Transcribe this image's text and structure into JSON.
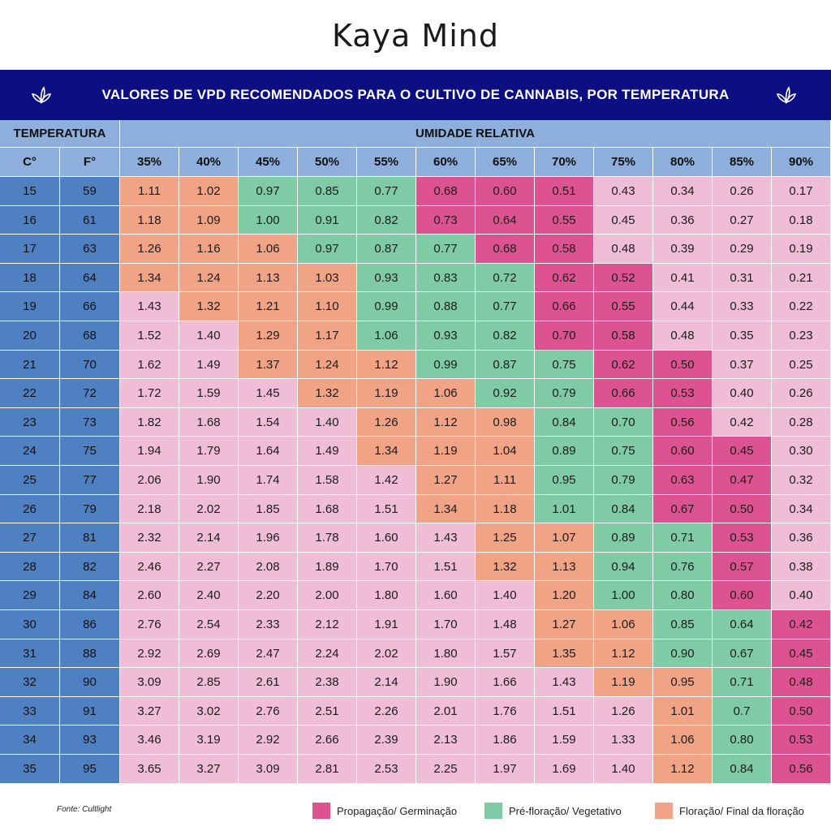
{
  "brand": "Kaya Mind",
  "title": "VALORES DE VPD RECOMENDADOS PARA O CULTIVO DE CANNABIS, POR TEMPERATURA",
  "source": "Fonte: Cultlight",
  "colors": {
    "propagacao": "#dd5291",
    "prefloracao": "#7ecba5",
    "floracao": "#f0a385",
    "other": "#efbdd5",
    "header": "#8eaedc",
    "temp": "#4f81c2",
    "banner": "#0c0f82"
  },
  "legend": [
    {
      "key": "propagacao",
      "label": "Propagação/ Germinação"
    },
    {
      "key": "prefloracao",
      "label": "Pré-floração/ Vegetativo"
    },
    {
      "key": "floracao",
      "label": "Floração/ Final da floração"
    }
  ],
  "chart_data": {
    "type": "table",
    "title": "VALORES DE VPD RECOMENDADOS PARA O CULTIVO DE CANNABIS, POR TEMPERATURA",
    "temperature_header": "TEMPERATURA",
    "humidity_header": "UMIDADE RELATIVA",
    "celsius_label": "C°",
    "fahrenheit_label": "F°",
    "humidity_levels": [
      "35%",
      "40%",
      "45%",
      "50%",
      "55%",
      "60%",
      "65%",
      "70%",
      "75%",
      "80%",
      "85%",
      "90%"
    ],
    "rows": [
      {
        "c": "15",
        "f": "59",
        "values": [
          "1.11",
          "1.02",
          "0.97",
          "0.85",
          "0.77",
          "0.68",
          "0.60",
          "0.51",
          "0.43",
          "0.34",
          "0.26",
          "0.17"
        ],
        "zones": [
          "F",
          "F",
          "V",
          "V",
          "V",
          "P",
          "P",
          "P",
          "O",
          "O",
          "O",
          "O"
        ]
      },
      {
        "c": "16",
        "f": "61",
        "values": [
          "1.18",
          "1.09",
          "1.00",
          "0.91",
          "0.82",
          "0.73",
          "0.64",
          "0.55",
          "0.45",
          "0.36",
          "0.27",
          "0.18"
        ],
        "zones": [
          "F",
          "F",
          "V",
          "V",
          "V",
          "P",
          "P",
          "P",
          "O",
          "O",
          "O",
          "O"
        ]
      },
      {
        "c": "17",
        "f": "63",
        "values": [
          "1.26",
          "1.16",
          "1.06",
          "0.97",
          "0.87",
          "0.77",
          "0.68",
          "0.58",
          "0.48",
          "0.39",
          "0.29",
          "0.19"
        ],
        "zones": [
          "F",
          "F",
          "F",
          "V",
          "V",
          "V",
          "P",
          "P",
          "O",
          "O",
          "O",
          "O"
        ]
      },
      {
        "c": "18",
        "f": "64",
        "values": [
          "1.34",
          "1.24",
          "1.13",
          "1.03",
          "0.93",
          "0.83",
          "0.72",
          "0.62",
          "0.52",
          "0.41",
          "0.31",
          "0.21"
        ],
        "zones": [
          "F",
          "F",
          "F",
          "F",
          "V",
          "V",
          "V",
          "P",
          "P",
          "O",
          "O",
          "O"
        ]
      },
      {
        "c": "19",
        "f": "66",
        "values": [
          "1.43",
          "1.32",
          "1.21",
          "1.10",
          "0.99",
          "0.88",
          "0.77",
          "0.66",
          "0.55",
          "0.44",
          "0.33",
          "0.22"
        ],
        "zones": [
          "O",
          "F",
          "F",
          "F",
          "V",
          "V",
          "V",
          "P",
          "P",
          "O",
          "O",
          "O"
        ]
      },
      {
        "c": "20",
        "f": "68",
        "values": [
          "1.52",
          "1.40",
          "1.29",
          "1.17",
          "1.06",
          "0.93",
          "0.82",
          "0.70",
          "0.58",
          "0.48",
          "0.35",
          "0.23"
        ],
        "zones": [
          "O",
          "O",
          "F",
          "F",
          "V",
          "V",
          "V",
          "P",
          "P",
          "O",
          "O",
          "O"
        ]
      },
      {
        "c": "21",
        "f": "70",
        "values": [
          "1.62",
          "1.49",
          "1.37",
          "1.24",
          "1.12",
          "0.99",
          "0.87",
          "0.75",
          "0.62",
          "0.50",
          "0.37",
          "0.25"
        ],
        "zones": [
          "O",
          "O",
          "F",
          "F",
          "F",
          "V",
          "V",
          "V",
          "P",
          "P",
          "O",
          "O"
        ]
      },
      {
        "c": "22",
        "f": "72",
        "values": [
          "1.72",
          "1.59",
          "1.45",
          "1.32",
          "1.19",
          "1.06",
          "0.92",
          "0.79",
          "0.66",
          "0.53",
          "0.40",
          "0.26"
        ],
        "zones": [
          "O",
          "O",
          "O",
          "F",
          "F",
          "F",
          "V",
          "V",
          "P",
          "P",
          "O",
          "O"
        ]
      },
      {
        "c": "23",
        "f": "73",
        "values": [
          "1.82",
          "1.68",
          "1.54",
          "1.40",
          "1.26",
          "1.12",
          "0.98",
          "0.84",
          "0.70",
          "0.56",
          "0.42",
          "0.28"
        ],
        "zones": [
          "O",
          "O",
          "O",
          "O",
          "F",
          "F",
          "F",
          "V",
          "V",
          "P",
          "O",
          "O"
        ]
      },
      {
        "c": "24",
        "f": "75",
        "values": [
          "1.94",
          "1.79",
          "1.64",
          "1.49",
          "1.34",
          "1.19",
          "1.04",
          "0.89",
          "0.75",
          "0.60",
          "0.45",
          "0.30"
        ],
        "zones": [
          "O",
          "O",
          "O",
          "O",
          "F",
          "F",
          "F",
          "V",
          "V",
          "P",
          "P",
          "O"
        ]
      },
      {
        "c": "25",
        "f": "77",
        "values": [
          "2.06",
          "1.90",
          "1.74",
          "1.58",
          "1.42",
          "1.27",
          "1.11",
          "0.95",
          "0.79",
          "0.63",
          "0.47",
          "0.32"
        ],
        "zones": [
          "O",
          "O",
          "O",
          "O",
          "O",
          "F",
          "F",
          "V",
          "V",
          "P",
          "P",
          "O"
        ]
      },
      {
        "c": "26",
        "f": "79",
        "values": [
          "2.18",
          "2.02",
          "1.85",
          "1.68",
          "1.51",
          "1.34",
          "1.18",
          "1.01",
          "0.84",
          "0.67",
          "0.50",
          "0.34"
        ],
        "zones": [
          "O",
          "O",
          "O",
          "O",
          "O",
          "F",
          "F",
          "V",
          "V",
          "P",
          "P",
          "O"
        ]
      },
      {
        "c": "27",
        "f": "81",
        "values": [
          "2.32",
          "2.14",
          "1.96",
          "1.78",
          "1.60",
          "1.43",
          "1.25",
          "1.07",
          "0.89",
          "0.71",
          "0.53",
          "0.36"
        ],
        "zones": [
          "O",
          "O",
          "O",
          "O",
          "O",
          "O",
          "F",
          "F",
          "V",
          "V",
          "P",
          "O"
        ]
      },
      {
        "c": "28",
        "f": "82",
        "values": [
          "2.46",
          "2.27",
          "2.08",
          "1.89",
          "1.70",
          "1.51",
          "1.32",
          "1.13",
          "0.94",
          "0.76",
          "0.57",
          "0.38"
        ],
        "zones": [
          "O",
          "O",
          "O",
          "O",
          "O",
          "O",
          "F",
          "F",
          "V",
          "V",
          "P",
          "O"
        ]
      },
      {
        "c": "29",
        "f": "84",
        "values": [
          "2.60",
          "2.40",
          "2.20",
          "2.00",
          "1.80",
          "1.60",
          "1.40",
          "1.20",
          "1.00",
          "0.80",
          "0.60",
          "0.40"
        ],
        "zones": [
          "O",
          "O",
          "O",
          "O",
          "O",
          "O",
          "O",
          "F",
          "V",
          "V",
          "P",
          "O"
        ]
      },
      {
        "c": "30",
        "f": "86",
        "values": [
          "2.76",
          "2.54",
          "2.33",
          "2.12",
          "1.91",
          "1.70",
          "1.48",
          "1.27",
          "1.06",
          "0.85",
          "0.64",
          "0.42"
        ],
        "zones": [
          "O",
          "O",
          "O",
          "O",
          "O",
          "O",
          "O",
          "F",
          "F",
          "V",
          "V",
          "P"
        ]
      },
      {
        "c": "31",
        "f": "88",
        "values": [
          "2.92",
          "2.69",
          "2.47",
          "2.24",
          "2.02",
          "1.80",
          "1.57",
          "1.35",
          "1.12",
          "0.90",
          "0.67",
          "0.45"
        ],
        "zones": [
          "O",
          "O",
          "O",
          "O",
          "O",
          "O",
          "O",
          "F",
          "F",
          "V",
          "V",
          "P"
        ]
      },
      {
        "c": "32",
        "f": "90",
        "values": [
          "3.09",
          "2.85",
          "2.61",
          "2.38",
          "2.14",
          "1.90",
          "1.66",
          "1.43",
          "1.19",
          "0.95",
          "0.71",
          "0.48"
        ],
        "zones": [
          "O",
          "O",
          "O",
          "O",
          "O",
          "O",
          "O",
          "O",
          "F",
          "F",
          "V",
          "P"
        ]
      },
      {
        "c": "33",
        "f": "91",
        "values": [
          "3.27",
          "3.02",
          "2.76",
          "2.51",
          "2.26",
          "2.01",
          "1.76",
          "1.51",
          "1.26",
          "1.01",
          "0.7",
          "0.50"
        ],
        "zones": [
          "O",
          "O",
          "O",
          "O",
          "O",
          "O",
          "O",
          "O",
          "O",
          "F",
          "V",
          "P"
        ]
      },
      {
        "c": "34",
        "f": "93",
        "values": [
          "3.46",
          "3.19",
          "2.92",
          "2.66",
          "2.39",
          "2.13",
          "1.86",
          "1.59",
          "1.33",
          "1.06",
          "0.80",
          "0.53"
        ],
        "zones": [
          "O",
          "O",
          "O",
          "O",
          "O",
          "O",
          "O",
          "O",
          "O",
          "F",
          "V",
          "P"
        ]
      },
      {
        "c": "35",
        "f": "95",
        "values": [
          "3.65",
          "3.27",
          "3.09",
          "2.81",
          "2.53",
          "2.25",
          "1.97",
          "1.69",
          "1.40",
          "1.12",
          "0.84",
          "0.56"
        ],
        "zones": [
          "O",
          "O",
          "O",
          "O",
          "O",
          "O",
          "O",
          "O",
          "O",
          "F",
          "V",
          "P"
        ]
      }
    ]
  }
}
